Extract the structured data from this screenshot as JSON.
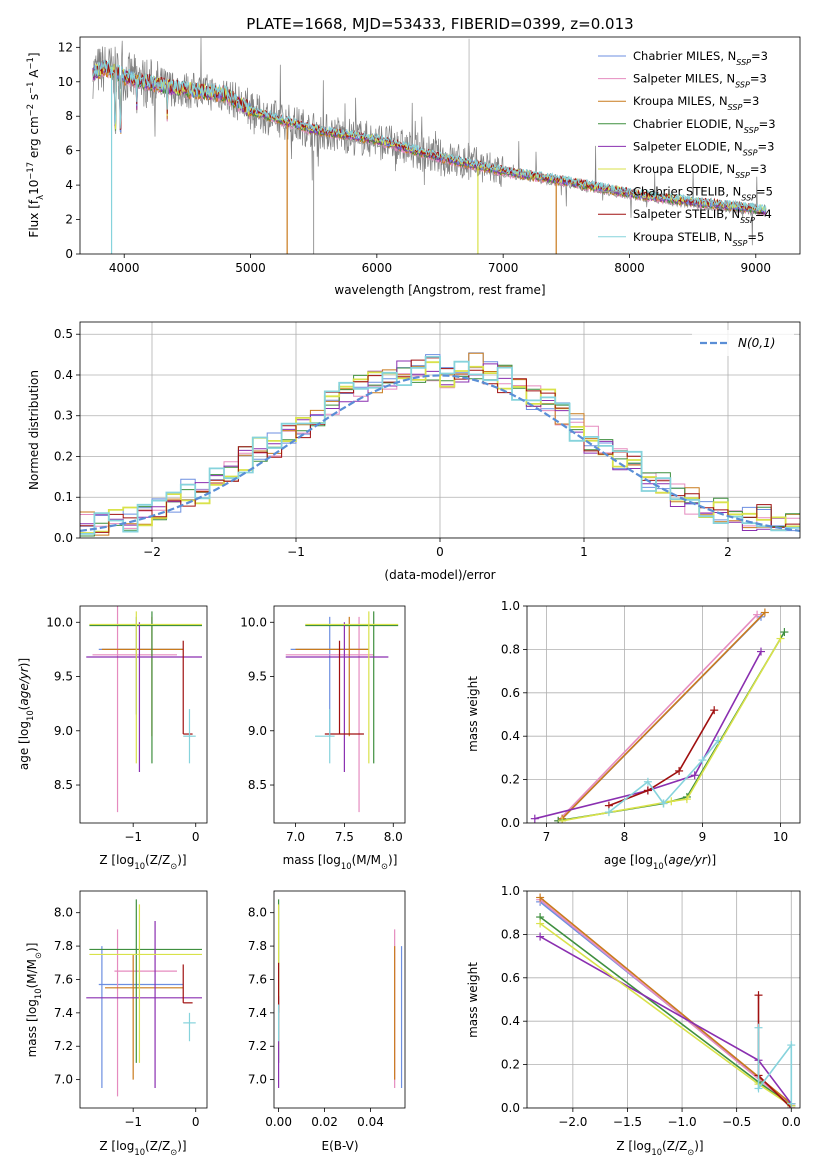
{
  "title": "PLATE=1668, MJD=53433, FIBERID=0399, z=0.013",
  "colors": {
    "Chabrier MILES": "#6d8fe0",
    "Salpeter MILES": "#e58bbf",
    "Kroupa MILES": "#c97a1c",
    "Chabrier ELODIE": "#3f8f3f",
    "Salpeter ELODIE": "#8a2fb0",
    "Kroupa ELODIE": "#d9e24a",
    "Chabrier STELIB": "#9a9a9a",
    "Salpeter STELIB": "#a01010",
    "Kroupa STELIB": "#86d3dc",
    "data": "#808080",
    "normal": "#5a8ed6"
  },
  "chart_data": [
    {
      "type": "line",
      "xlabel": "wavelength [Angstrom, rest frame]",
      "ylabel": "Flux [f_λ10^-17 erg cm^-2 s^-1 A^-1]",
      "ylabel_parts": {
        "a": "Flux [f",
        "b": "λ",
        "c": "10",
        "d": "−17",
        "e": " erg cm",
        "f": "−2",
        "g": " s",
        "h": "−1",
        "i": " A",
        "j": "−1",
        "k": "]"
      },
      "xlim": [
        3650,
        9350
      ],
      "ylim": [
        0,
        12.6
      ],
      "xticks": [
        4000,
        5000,
        6000,
        7000,
        8000,
        9000
      ],
      "yticks": [
        0,
        2,
        4,
        6,
        8,
        10,
        12
      ],
      "legend_position": "upper right",
      "legend": [
        {
          "name": "Chabrier MILES",
          "n": "3"
        },
        {
          "name": "Salpeter MILES",
          "n": "3"
        },
        {
          "name": "Kroupa MILES",
          "n": "3"
        },
        {
          "name": "Chabrier ELODIE",
          "n": "3"
        },
        {
          "name": "Salpeter ELODIE",
          "n": "3"
        },
        {
          "name": "Kroupa ELODIE",
          "n": "3"
        },
        {
          "name": "Chabrier STELIB",
          "n": "5"
        },
        {
          "name": "Salpeter STELIB",
          "n": "4"
        },
        {
          "name": "Kroupa STELIB",
          "n": "5"
        }
      ],
      "legend_sub": "SSP",
      "model_continuum": {
        "x": [
          3750,
          3850,
          4000,
          4200,
          4500,
          4800,
          5000,
          5500,
          6000,
          6500,
          7000,
          7500,
          8000,
          8500,
          9000,
          9080
        ],
        "y": [
          10.5,
          10.8,
          10.3,
          9.9,
          9.5,
          9.3,
          8.3,
          7.2,
          6.6,
          5.6,
          4.8,
          4.2,
          3.5,
          3.0,
          2.6,
          2.5
        ]
      },
      "dips": [
        {
          "series": "Kroupa STELIB",
          "x": 3900,
          "y": 0
        },
        {
          "series": "Kroupa MILES",
          "x": 5290,
          "y": 0
        },
        {
          "series": "Kroupa ELODIE",
          "x": 6800,
          "y": 0
        },
        {
          "series": "Kroupa MILES",
          "x": 7420,
          "y": 0
        }
      ]
    },
    {
      "type": "line",
      "xlabel": "(data-model)/error",
      "ylabel": "Normed distribution",
      "xlim": [
        -2.5,
        2.5
      ],
      "ylim": [
        0,
        0.53
      ],
      "xticks": [
        -2,
        -1,
        0,
        1,
        2
      ],
      "xticklabels": [
        "−2",
        "−1",
        "0",
        "1",
        "2"
      ],
      "yticks": [
        0,
        0.1,
        0.2,
        0.3,
        0.4,
        0.5
      ],
      "yticklabels": [
        "0.0",
        "0.1",
        "0.2",
        "0.3",
        "0.4",
        "0.5"
      ],
      "grid": true,
      "legend": "N(0,1)",
      "legend_position": "upper right",
      "hist_base": [
        0.03,
        0.03,
        0.04,
        0.05,
        0.06,
        0.07,
        0.09,
        0.11,
        0.12,
        0.14,
        0.17,
        0.19,
        0.22,
        0.23,
        0.26,
        0.28,
        0.31,
        0.33,
        0.35,
        0.37,
        0.39,
        0.4,
        0.41,
        0.41,
        0.42,
        0.4,
        0.41,
        0.42,
        0.41,
        0.39,
        0.37,
        0.35,
        0.33,
        0.3,
        0.27,
        0.24,
        0.22,
        0.2,
        0.18,
        0.15,
        0.13,
        0.11,
        0.09,
        0.08,
        0.07,
        0.06,
        0.05,
        0.05,
        0.04,
        0.03
      ],
      "hist_series": [
        "Chabrier MILES",
        "Salpeter MILES",
        "Kroupa MILES",
        "Chabrier ELODIE",
        "Salpeter ELODIE",
        "Kroupa ELODIE",
        "Salpeter STELIB",
        "Kroupa STELIB"
      ]
    },
    {
      "type": "scatter",
      "name": "age-vs-Z",
      "xlabel_parts": {
        "a": "Z [log",
        "b": "10",
        "c": "(Z/Z",
        "d": "⊙",
        "e": ")]"
      },
      "ylabel_parts": {
        "a": "age  [log",
        "b": "10",
        "c": "(",
        "d": "age/yr",
        "e": ")]"
      },
      "xlim": [
        -1.85,
        0.18
      ],
      "ylim": [
        8.15,
        10.15
      ],
      "xticks": [
        -1,
        0
      ],
      "xticklabels": [
        "−1",
        "0"
      ],
      "yticks": [
        8.5,
        9.0,
        9.5,
        10.0
      ],
      "yticklabels": [
        "8.5",
        "9.0",
        "9.5",
        "10.0"
      ],
      "crosses": [
        {
          "series": "Chabrier MILES",
          "x": -0.95,
          "y": 9.75,
          "xe": [
            -1.55,
            -0.2
          ],
          "ye": [
            9.15,
            10.05
          ]
        },
        {
          "series": "Salpeter MILES",
          "x": -1.25,
          "y": 9.7,
          "xe": [
            -1.65,
            -0.3
          ],
          "ye": [
            8.25,
            10.15
          ]
        },
        {
          "series": "Kroupa MILES",
          "x": -0.7,
          "y": 9.75,
          "xe": [
            -1.5,
            -0.2
          ],
          "ye": [
            8.95,
            10.05
          ]
        },
        {
          "series": "Chabrier ELODIE",
          "x": -0.7,
          "y": 9.97,
          "xe": [
            -1.7,
            0.1
          ],
          "ye": [
            8.7,
            10.1
          ]
        },
        {
          "series": "Salpeter ELODIE",
          "x": -0.9,
          "y": 9.68,
          "xe": [
            -1.75,
            0.1
          ],
          "ye": [
            8.62,
            10.0
          ]
        },
        {
          "series": "Kroupa ELODIE",
          "x": -0.95,
          "y": 9.98,
          "xe": [
            -1.7,
            0.1
          ],
          "ye": [
            8.7,
            10.1
          ]
        },
        {
          "series": "Salpeter STELIB",
          "x": -0.2,
          "y": 8.97,
          "xe": [
            -0.2,
            -0.05
          ],
          "ye": [
            8.97,
            9.83
          ]
        },
        {
          "series": "Kroupa STELIB",
          "x": -0.1,
          "y": 8.95,
          "xe": [
            -0.2,
            0.0
          ],
          "ye": [
            8.7,
            9.2
          ]
        }
      ]
    },
    {
      "type": "scatter",
      "name": "age-vs-mass",
      "xlabel_parts": {
        "a": "mass [log",
        "b": "10",
        "c": "(M/M",
        "d": "⊙",
        "e": ")]"
      },
      "xlim": [
        6.78,
        8.12
      ],
      "ylim": [
        8.15,
        10.15
      ],
      "xticks": [
        7.0,
        7.5,
        8.0
      ],
      "xticklabels": [
        "7.0",
        "7.5",
        "8.0"
      ],
      "yticks": [
        8.5,
        9.0,
        9.5,
        10.0
      ],
      "yticklabels": [
        "8.5",
        "9.0",
        "9.5",
        "10.0"
      ],
      "crosses": [
        {
          "series": "Chabrier MILES",
          "x": 7.35,
          "y": 9.75,
          "xe": [
            6.95,
            7.75
          ],
          "ye": [
            8.95,
            10.05
          ]
        },
        {
          "series": "Salpeter MILES",
          "x": 7.65,
          "y": 9.7,
          "xe": [
            6.9,
            7.8
          ],
          "ye": [
            8.25,
            10.05
          ]
        },
        {
          "series": "Kroupa MILES",
          "x": 7.55,
          "y": 9.75,
          "xe": [
            7.0,
            7.75
          ],
          "ye": [
            8.95,
            10.05
          ]
        },
        {
          "series": "Chabrier ELODIE",
          "x": 7.8,
          "y": 9.97,
          "xe": [
            7.1,
            8.05
          ],
          "ye": [
            8.7,
            10.1
          ]
        },
        {
          "series": "Salpeter ELODIE",
          "x": 7.5,
          "y": 9.68,
          "xe": [
            6.9,
            7.95
          ],
          "ye": [
            8.62,
            10.0
          ]
        },
        {
          "series": "Kroupa ELODIE",
          "x": 7.75,
          "y": 9.98,
          "xe": [
            7.1,
            8.05
          ],
          "ye": [
            8.7,
            10.1
          ]
        },
        {
          "series": "Salpeter STELIB",
          "x": 7.45,
          "y": 8.97,
          "xe": [
            7.3,
            7.7
          ],
          "ye": [
            8.97,
            9.83
          ]
        },
        {
          "series": "Kroupa STELIB",
          "x": 7.35,
          "y": 8.95,
          "xe": [
            7.2,
            7.4
          ],
          "ye": [
            8.7,
            9.2
          ]
        }
      ]
    },
    {
      "type": "line",
      "name": "mass-weight-vs-age",
      "xlabel_parts": {
        "a": "age  [log",
        "b": "10",
        "c": "(",
        "d": "age/yr",
        "e": ")]"
      },
      "ylabel": "mass weight",
      "xlim": [
        6.75,
        10.25
      ],
      "ylim": [
        0,
        1
      ],
      "xticks": [
        7,
        8,
        9,
        10
      ],
      "xticklabels": [
        "7",
        "8",
        "9",
        "10"
      ],
      "yticks": [
        0,
        0.2,
        0.4,
        0.6,
        0.8,
        1.0
      ],
      "yticklabels": [
        "0.0",
        "0.2",
        "0.4",
        "0.6",
        "0.8",
        "1.0"
      ],
      "grid": true,
      "series": [
        {
          "name": "Chabrier MILES",
          "x": [
            7.2,
            9.75
          ],
          "y": [
            0.02,
            0.95
          ]
        },
        {
          "name": "Salpeter MILES",
          "x": [
            7.15,
            9.7
          ],
          "y": [
            0.01,
            0.96
          ]
        },
        {
          "name": "Kroupa MILES",
          "x": [
            7.2,
            9.8
          ],
          "y": [
            0.02,
            0.97
          ]
        },
        {
          "name": "Chabrier ELODIE",
          "x": [
            7.15,
            8.5,
            8.8,
            10.05
          ],
          "y": [
            0.01,
            0.09,
            0.12,
            0.88
          ]
        },
        {
          "name": "Salpeter ELODIE",
          "x": [
            6.85,
            8.3,
            8.9,
            9.75
          ],
          "y": [
            0.02,
            0.15,
            0.22,
            0.79
          ]
        },
        {
          "name": "Kroupa ELODIE",
          "x": [
            7.2,
            8.6,
            8.8,
            10.0
          ],
          "y": [
            0.01,
            0.1,
            0.11,
            0.85
          ]
        },
        {
          "name": "Salpeter STELIB",
          "x": [
            7.8,
            8.3,
            8.7,
            9.15
          ],
          "y": [
            0.08,
            0.15,
            0.24,
            0.52
          ]
        },
        {
          "name": "Kroupa STELIB",
          "x": [
            7.8,
            8.3,
            8.5,
            9.0,
            9.2
          ],
          "y": [
            0.05,
            0.19,
            0.09,
            0.29,
            0.38
          ]
        }
      ]
    },
    {
      "type": "scatter",
      "name": "mass-vs-Z",
      "xlabel_parts": {
        "a": "Z [log",
        "b": "10",
        "c": "(Z/Z",
        "d": "⊙",
        "e": ")]"
      },
      "ylabel_parts": {
        "a": "mass [log",
        "b": "10",
        "c": "(M/M",
        "d": "⊙",
        "e": ")]"
      },
      "xlim": [
        -1.85,
        0.18
      ],
      "ylim": [
        6.83,
        8.13
      ],
      "xticks": [
        -1,
        0
      ],
      "xticklabels": [
        "−1",
        "0"
      ],
      "yticks": [
        7.0,
        7.2,
        7.4,
        7.6,
        7.8,
        8.0
      ],
      "yticklabels": [
        "7.0",
        "7.2",
        "7.4",
        "7.6",
        "7.8",
        "8.0"
      ],
      "crosses": [
        {
          "series": "Chabrier MILES",
          "x": -1.5,
          "y": 7.57,
          "xe": [
            -1.55,
            -0.2
          ],
          "ye": [
            6.95,
            7.8
          ]
        },
        {
          "series": "Salpeter MILES",
          "x": -1.25,
          "y": 7.65,
          "xe": [
            -1.3,
            -0.3
          ],
          "ye": [
            6.9,
            7.9
          ]
        },
        {
          "series": "Kroupa MILES",
          "x": -1.0,
          "y": 7.55,
          "xe": [
            -1.45,
            -0.2
          ],
          "ye": [
            7.0,
            7.75
          ]
        },
        {
          "series": "Chabrier ELODIE",
          "x": -0.95,
          "y": 7.78,
          "xe": [
            -1.7,
            0.1
          ],
          "ye": [
            7.1,
            8.08
          ]
        },
        {
          "series": "Salpeter ELODIE",
          "x": -0.65,
          "y": 7.49,
          "xe": [
            -1.75,
            0.1
          ],
          "ye": [
            6.95,
            7.95
          ]
        },
        {
          "series": "Kroupa ELODIE",
          "x": -0.9,
          "y": 7.75,
          "xe": [
            -1.7,
            0.1
          ],
          "ye": [
            7.1,
            8.05
          ]
        },
        {
          "series": "Salpeter STELIB",
          "x": -0.2,
          "y": 7.46,
          "xe": [
            -0.2,
            -0.05
          ],
          "ye": [
            7.46,
            7.69
          ]
        },
        {
          "series": "Kroupa STELIB",
          "x": -0.1,
          "y": 7.34,
          "xe": [
            -0.2,
            0.0
          ],
          "ye": [
            7.23,
            7.4
          ]
        }
      ]
    },
    {
      "type": "scatter",
      "name": "mass-vs-EBV",
      "xlabel": "E(B-V)",
      "ylabel_parts": {
        "a": "mass [log",
        "b": "10",
        "c": "(M/M",
        "d": "⊙",
        "e": ")]"
      },
      "xlim": [
        -0.002,
        0.055
      ],
      "ylim": [
        6.83,
        8.13
      ],
      "xticks": [
        0,
        0.02,
        0.04
      ],
      "xticklabels": [
        "0.00",
        "0.02",
        "0.04"
      ],
      "yticks": [
        7.0,
        7.2,
        7.4,
        7.6,
        7.8,
        8.0
      ],
      "yticklabels": [
        "7.0",
        "7.2",
        "7.4",
        "7.6",
        "7.8",
        "8.0"
      ],
      "bars": [
        {
          "series": "Chabrier ELODIE",
          "x": 0.0,
          "ye": [
            7.1,
            8.08
          ]
        },
        {
          "series": "Kroupa ELODIE",
          "x": 0.0,
          "ye": [
            7.2,
            8.05
          ]
        },
        {
          "series": "Salpeter ELODIE",
          "x": 0.0,
          "ye": [
            6.95,
            7.5
          ]
        },
        {
          "series": "Salpeter STELIB",
          "x": 0.0,
          "ye": [
            7.4,
            7.7
          ]
        },
        {
          "series": "Kroupa STELIB",
          "x": 0.0,
          "ye": [
            7.23,
            7.45
          ]
        },
        {
          "series": "Salpeter MILES",
          "x": 0.0505,
          "ye": [
            6.95,
            7.9
          ]
        },
        {
          "series": "Kroupa MILES",
          "x": 0.0505,
          "ye": [
            7.0,
            7.8
          ]
        },
        {
          "series": "Chabrier MILES",
          "x": 0.0535,
          "ye": [
            6.95,
            7.8
          ]
        }
      ]
    },
    {
      "type": "line",
      "name": "mass-weight-vs-Z",
      "xlabel_parts": {
        "a": "Z [log",
        "b": "10",
        "c": "(Z/Z",
        "d": "⊙",
        "e": ")]"
      },
      "ylabel": "mass weight",
      "xlim": [
        -2.42,
        0.08
      ],
      "ylim": [
        0,
        1
      ],
      "xticks": [
        -2.0,
        -1.5,
        -1.0,
        -0.5,
        0.0
      ],
      "xticklabels": [
        "−2.0",
        "−1.5",
        "−1.0",
        "−0.5",
        "0.0"
      ],
      "yticks": [
        0,
        0.2,
        0.4,
        0.6,
        0.8,
        1.0
      ],
      "yticklabels": [
        "0.0",
        "0.2",
        "0.4",
        "0.6",
        "0.8",
        "1.0"
      ],
      "grid": true,
      "series": [
        {
          "name": "Chabrier MILES",
          "x": [
            -2.3,
            0.0
          ],
          "y": [
            0.95,
            0.02
          ]
        },
        {
          "name": "Salpeter MILES",
          "x": [
            -2.3,
            0.0
          ],
          "y": [
            0.96,
            0.01
          ]
        },
        {
          "name": "Kroupa MILES",
          "x": [
            -2.3,
            0.0
          ],
          "y": [
            0.97,
            0.02
          ]
        },
        {
          "name": "Chabrier ELODIE",
          "x": [
            -2.3,
            -0.3,
            0.0
          ],
          "y": [
            0.88,
            0.12,
            0.01
          ]
        },
        {
          "name": "Salpeter ELODIE",
          "x": [
            -2.3,
            -0.3,
            0.0
          ],
          "y": [
            0.79,
            0.22,
            0.02
          ]
        },
        {
          "name": "Kroupa ELODIE",
          "x": [
            -2.3,
            -0.3,
            0.0
          ],
          "y": [
            0.85,
            0.11,
            0.01
          ]
        },
        {
          "name": "Salpeter STELIB",
          "x": [
            -0.3,
            -0.3,
            0.0
          ],
          "y": [
            0.52,
            0.15,
            0.0
          ]
        },
        {
          "name": "Kroupa STELIB",
          "x": [
            -0.3,
            -0.3,
            0.0,
            0.0
          ],
          "y": [
            0.37,
            0.09,
            0.29,
            0.02
          ]
        }
      ]
    }
  ]
}
